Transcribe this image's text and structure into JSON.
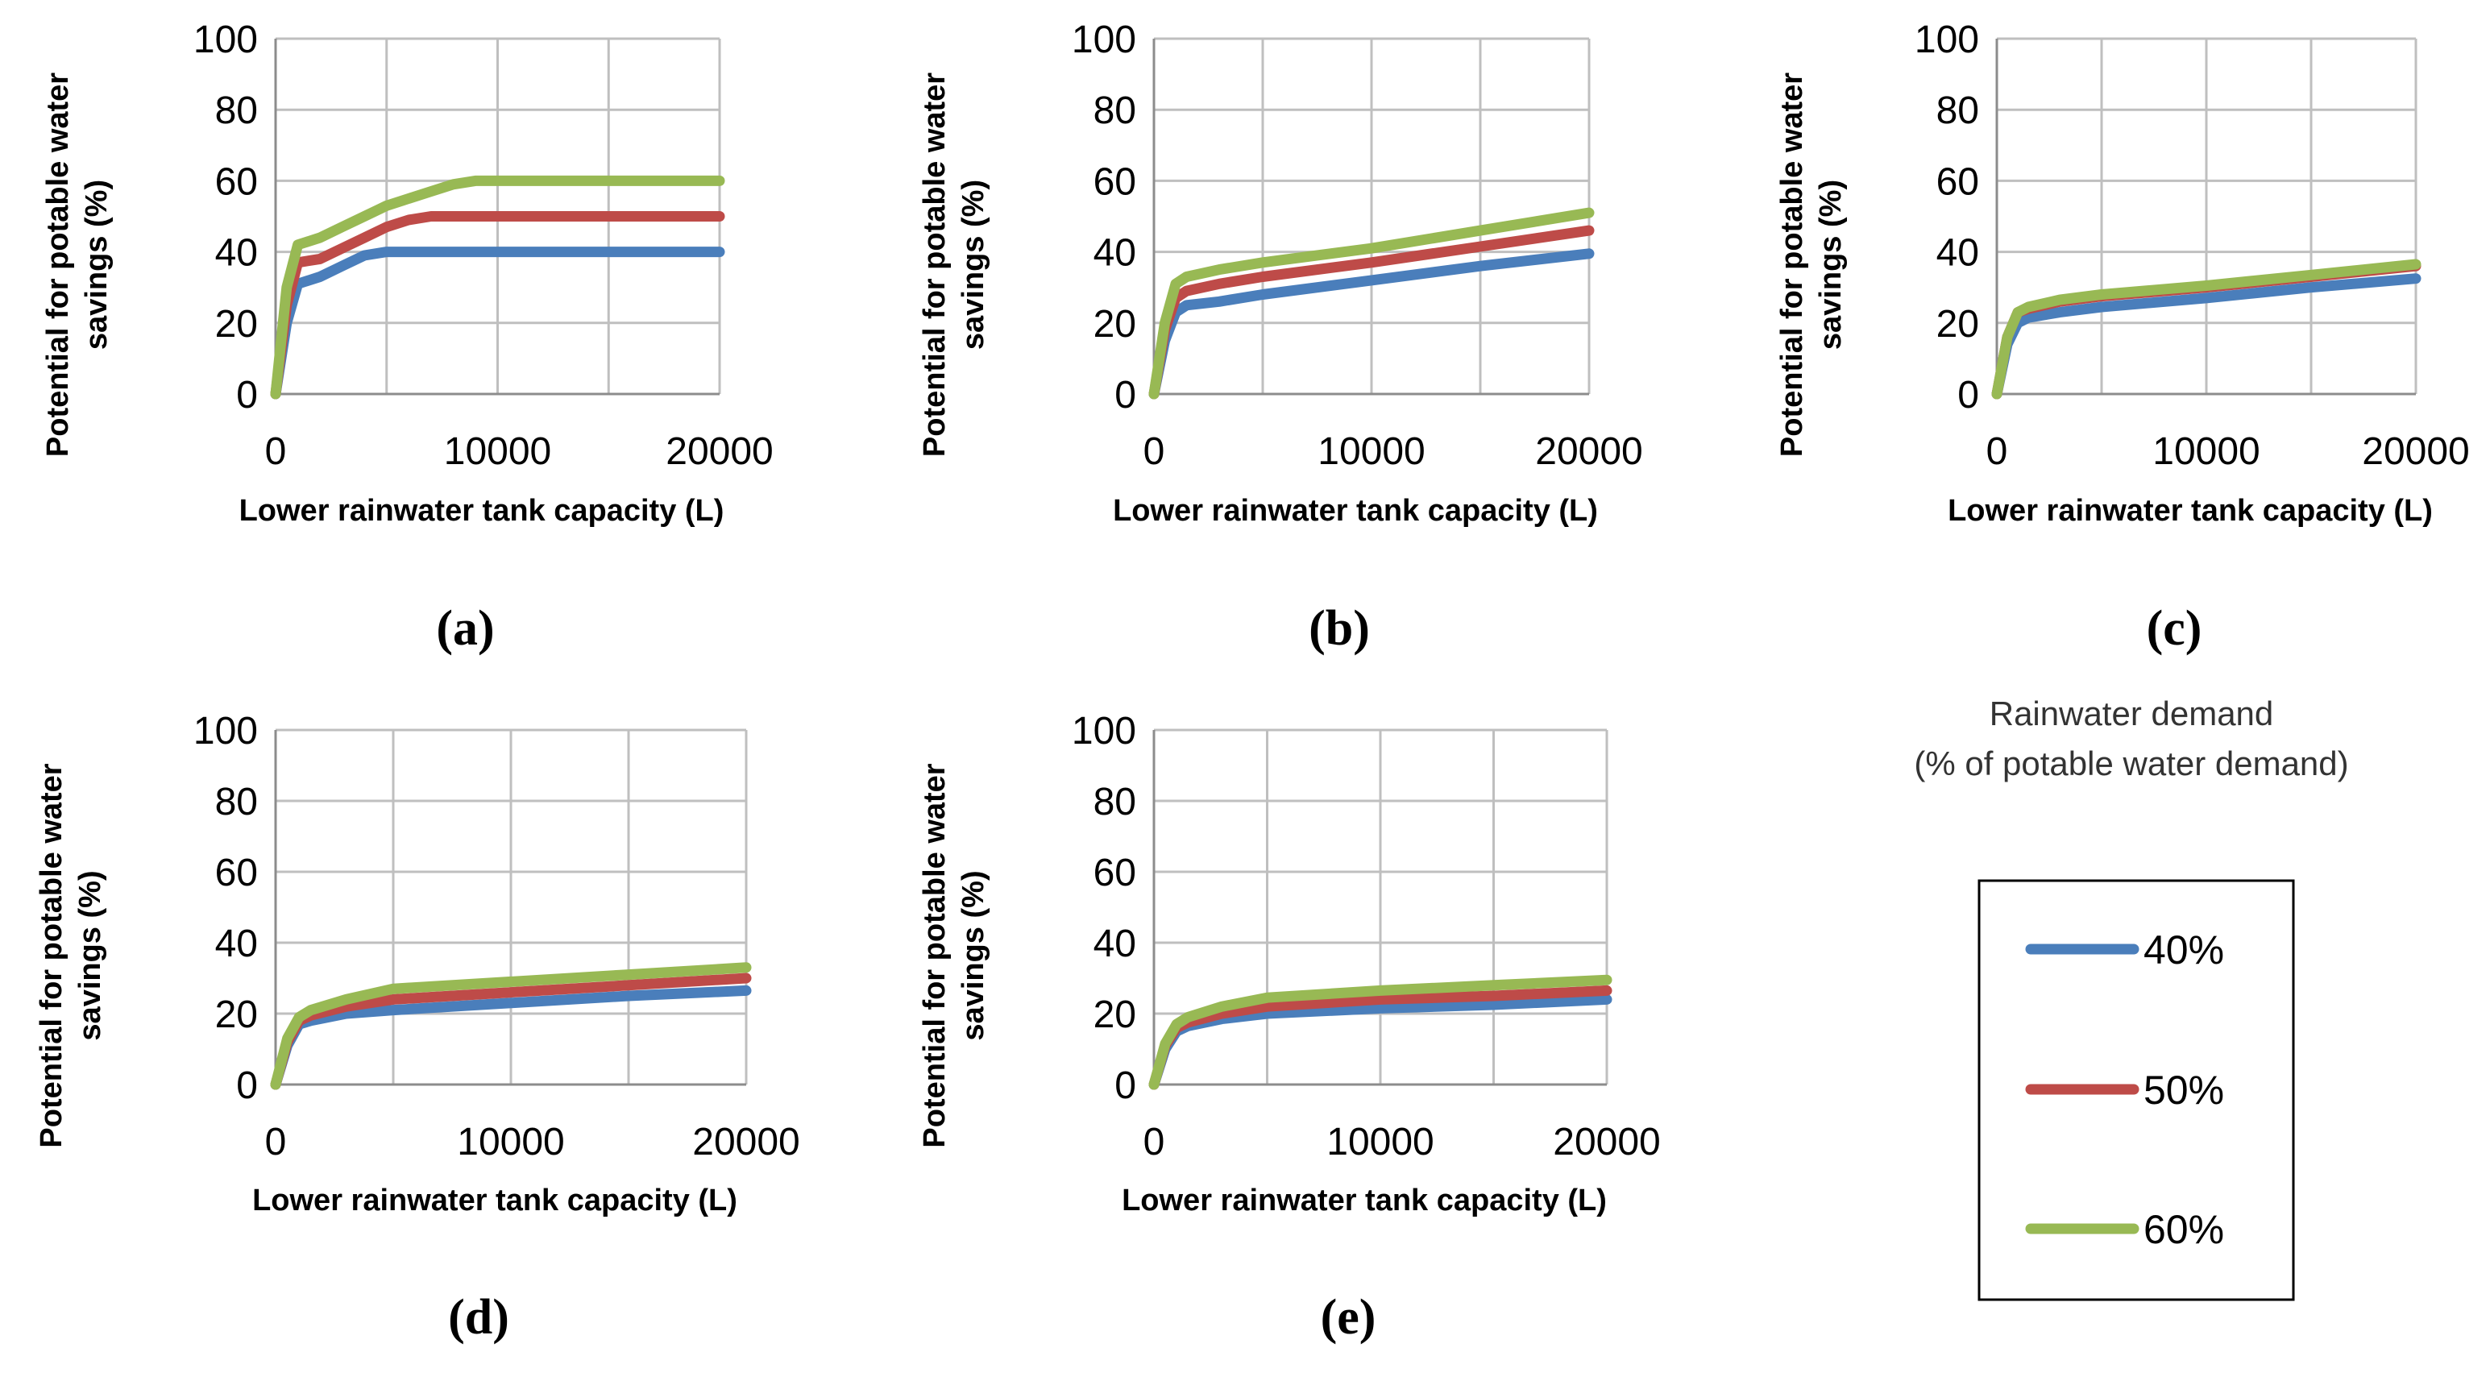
{
  "colors": {
    "40%": "#4a7ebb",
    "50%": "#be4b48",
    "60%": "#98b954",
    "grid": "#bfbfbf",
    "axis": "#8c8c8c"
  },
  "legend": {
    "title_line1": "Rainwater demand",
    "title_line2": "(% of potable water demand)",
    "entries": [
      {
        "name": "40%",
        "color_key": "40%"
      },
      {
        "name": "50%",
        "color_key": "50%"
      },
      {
        "name": "60%",
        "color_key": "60%"
      }
    ]
  },
  "chart_data": [
    {
      "type": "line",
      "panel": "(a)",
      "xlabel": "Lower  rainwater tank capacity (L)",
      "ylabel_line1": "Potential for potable water",
      "ylabel_line2": "savings (%)",
      "xlim": [
        0,
        20000
      ],
      "ylim": [
        0,
        100
      ],
      "xticks": [
        0,
        10000,
        20000
      ],
      "yticks": [
        0,
        20,
        40,
        60,
        80,
        100
      ],
      "x_grid": [
        0,
        5000,
        10000,
        15000,
        20000
      ],
      "series": [
        {
          "name": "40%",
          "x": [
            0,
            500,
            1000,
            2000,
            3000,
            4000,
            5000,
            6000,
            8000,
            10000,
            15000,
            20000
          ],
          "y": [
            0,
            20,
            31,
            33,
            36,
            39,
            40,
            40,
            40,
            40,
            40,
            40
          ]
        },
        {
          "name": "50%",
          "x": [
            0,
            500,
            1000,
            2000,
            3000,
            4000,
            5000,
            6000,
            7000,
            8000,
            10000,
            15000,
            20000
          ],
          "y": [
            0,
            25,
            37,
            38,
            41,
            44,
            47,
            49,
            50,
            50,
            50,
            50,
            50
          ]
        },
        {
          "name": "60%",
          "x": [
            0,
            500,
            1000,
            2000,
            3000,
            4000,
            5000,
            6000,
            7000,
            8000,
            9000,
            10000,
            12000,
            15000,
            20000
          ],
          "y": [
            0,
            30,
            42,
            44,
            47,
            50,
            53,
            55,
            57,
            59,
            60,
            60,
            60,
            60,
            60
          ]
        }
      ]
    },
    {
      "type": "line",
      "panel": "(b)",
      "xlabel": "Lower  rainwater tank capacity (L)",
      "ylabel_line1": "Potential for potable water",
      "ylabel_line2": "savings (%)",
      "xlim": [
        0,
        20000
      ],
      "ylim": [
        0,
        100
      ],
      "xticks": [
        0,
        10000,
        20000
      ],
      "yticks": [
        0,
        20,
        40,
        60,
        80,
        100
      ],
      "x_grid": [
        0,
        5000,
        10000,
        15000,
        20000
      ],
      "series": [
        {
          "name": "40%",
          "x": [
            0,
            500,
            1000,
            1500,
            3000,
            5000,
            10000,
            15000,
            20000
          ],
          "y": [
            0,
            15,
            23,
            25,
            26,
            28,
            32,
            36,
            39.5
          ]
        },
        {
          "name": "50%",
          "x": [
            0,
            500,
            1000,
            1500,
            3000,
            5000,
            10000,
            15000,
            20000
          ],
          "y": [
            0,
            18,
            27,
            29,
            31,
            33,
            37,
            41.5,
            46
          ]
        },
        {
          "name": "60%",
          "x": [
            0,
            500,
            1000,
            1500,
            3000,
            5000,
            10000,
            15000,
            20000
          ],
          "y": [
            0,
            20,
            31,
            33,
            35,
            37,
            41,
            46,
            51
          ]
        }
      ]
    },
    {
      "type": "line",
      "panel": "(c)",
      "xlabel": "Lower  rainwater tank capacity (L)",
      "ylabel_line1": "Potential for potable water",
      "ylabel_line2": "savings (%)",
      "xlim": [
        0,
        20000
      ],
      "ylim": [
        0,
        100
      ],
      "xticks": [
        0,
        10000,
        20000
      ],
      "yticks": [
        0,
        20,
        40,
        60,
        80,
        100
      ],
      "x_grid": [
        0,
        5000,
        10000,
        15000,
        20000
      ],
      "series": [
        {
          "name": "40%",
          "x": [
            0,
            500,
            1000,
            1500,
            3000,
            5000,
            10000,
            15000,
            20000
          ],
          "y": [
            0,
            14,
            20,
            21.5,
            23,
            24.5,
            27,
            30,
            32.5
          ]
        },
        {
          "name": "50%",
          "x": [
            0,
            500,
            1000,
            1500,
            3000,
            5000,
            10000,
            15000,
            20000
          ],
          "y": [
            0,
            16,
            23,
            24,
            26,
            27.5,
            30,
            33,
            36
          ]
        },
        {
          "name": "60%",
          "x": [
            0,
            500,
            1000,
            1500,
            3000,
            5000,
            10000,
            15000,
            20000
          ],
          "y": [
            0,
            16,
            23,
            24.5,
            26.5,
            28,
            30.5,
            33.5,
            36.5
          ]
        }
      ]
    },
    {
      "type": "line",
      "panel": "(d)",
      "xlabel": "Lower  rainwater tank capacity (L)",
      "ylabel_line1": "Potential for potable water",
      "ylabel_line2": "savings (%)",
      "xlim": [
        0,
        20000
      ],
      "ylim": [
        0,
        100
      ],
      "xticks": [
        0,
        10000,
        20000
      ],
      "yticks": [
        0,
        20,
        40,
        60,
        80,
        100
      ],
      "x_grid": [
        0,
        5000,
        10000,
        15000,
        20000
      ],
      "series": [
        {
          "name": "40%",
          "x": [
            0,
            500,
            1000,
            1500,
            3000,
            5000,
            10000,
            15000,
            20000
          ],
          "y": [
            0,
            11,
            17,
            18,
            20,
            21,
            23,
            25,
            26.5
          ]
        },
        {
          "name": "50%",
          "x": [
            0,
            500,
            1000,
            1500,
            3000,
            5000,
            10000,
            15000,
            20000
          ],
          "y": [
            0,
            12,
            18,
            19.5,
            22,
            24,
            26,
            28,
            30
          ]
        },
        {
          "name": "60%",
          "x": [
            0,
            500,
            1000,
            1500,
            3000,
            5000,
            10000,
            15000,
            20000
          ],
          "y": [
            0,
            13,
            19,
            21,
            24,
            27,
            29,
            31,
            33
          ]
        }
      ]
    },
    {
      "type": "line",
      "panel": "(e)",
      "xlabel": "Lower  rainwater tank capacity (L)",
      "ylabel_line1": "Potential for potable water",
      "ylabel_line2": "savings (%)",
      "xlim": [
        0,
        20000
      ],
      "ylim": [
        0,
        100
      ],
      "xticks": [
        0,
        10000,
        20000
      ],
      "yticks": [
        0,
        20,
        40,
        60,
        80,
        100
      ],
      "x_grid": [
        0,
        5000,
        10000,
        15000,
        20000
      ],
      "series": [
        {
          "name": "40%",
          "x": [
            0,
            500,
            1000,
            1500,
            3000,
            5000,
            10000,
            15000,
            20000
          ],
          "y": [
            0,
            10,
            15,
            16.5,
            18.5,
            20,
            21.5,
            22.5,
            24
          ]
        },
        {
          "name": "50%",
          "x": [
            0,
            500,
            1000,
            1500,
            3000,
            5000,
            10000,
            15000,
            20000
          ],
          "y": [
            0,
            11,
            16,
            17.5,
            20,
            22,
            24,
            25,
            26.5
          ]
        },
        {
          "name": "60%",
          "x": [
            0,
            500,
            1000,
            1500,
            3000,
            5000,
            10000,
            15000,
            20000
          ],
          "y": [
            0,
            11.5,
            17,
            19,
            22,
            24.5,
            26.5,
            28,
            29.5
          ]
        }
      ]
    }
  ]
}
